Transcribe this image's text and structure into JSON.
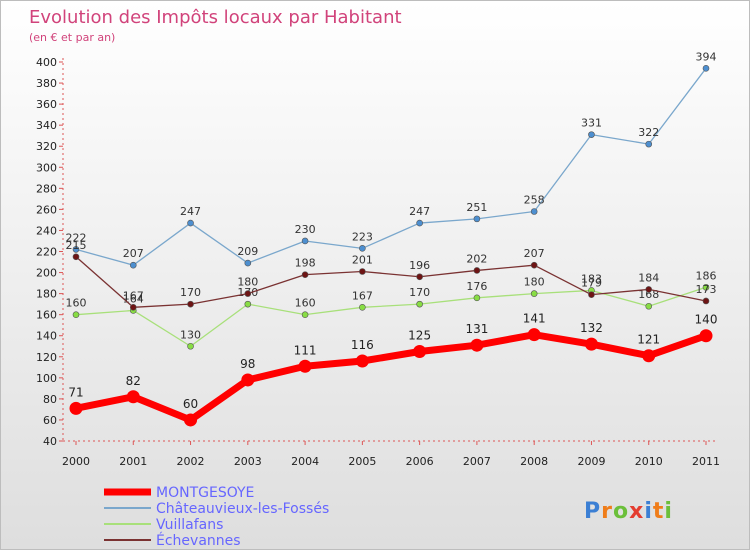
{
  "chart_data": {
    "type": "line",
    "title": "Evolution des Impôts locaux par Habitant",
    "subtitle": "(en € et par an)",
    "x": [
      "2000",
      "2001",
      "2002",
      "2003",
      "2004",
      "2005",
      "2006",
      "2007",
      "2008",
      "2009",
      "2010",
      "2011"
    ],
    "ylim": [
      40,
      400
    ],
    "ytick_step": 20,
    "grid": false,
    "legend_position": "bottom-left",
    "series": [
      {
        "name": "MONTGESOYE",
        "color": "#ff0000",
        "text_color": "#6666ff",
        "emphasis": true,
        "values": [
          71,
          82,
          60,
          98,
          111,
          116,
          125,
          131,
          141,
          132,
          121,
          140
        ]
      },
      {
        "name": "Châteauvieux-les-Fossés",
        "color": "#7aa7cc",
        "marker": "#4d8fd0",
        "text_color": "#6666ff",
        "values": [
          222,
          207,
          247,
          209,
          230,
          223,
          247,
          251,
          258,
          331,
          322,
          394
        ]
      },
      {
        "name": "Vuillafans",
        "color": "#a8e07a",
        "marker": "#88dd44",
        "text_color": "#6666ff",
        "values": [
          160,
          164,
          130,
          170,
          160,
          167,
          170,
          176,
          180,
          183,
          168,
          186
        ]
      },
      {
        "name": "Échevannes",
        "color": "#7a3232",
        "marker": "#6e1414",
        "text_color": "#6666ff",
        "values": [
          215,
          167,
          170,
          180,
          198,
          201,
          196,
          202,
          207,
          179,
          184,
          173
        ]
      }
    ]
  },
  "logo": {
    "letters": [
      "P",
      "r",
      "o",
      "x",
      "i",
      "t",
      "i"
    ],
    "colors": [
      "#3b7fd4",
      "#ef7d1a",
      "#6bbf3a",
      "#e43d30",
      "#3b7fd4",
      "#ef7d1a",
      "#6bbf3a"
    ]
  }
}
